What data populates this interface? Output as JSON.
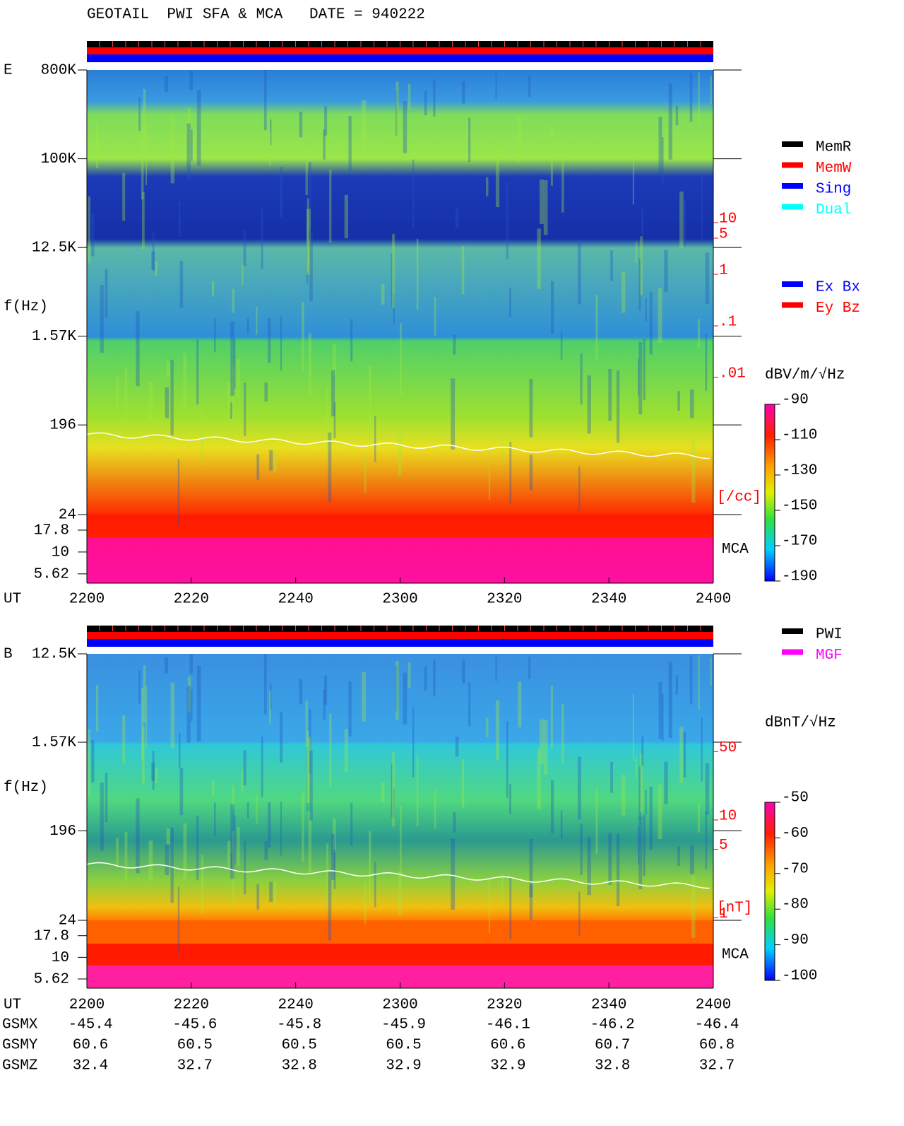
{
  "title": "GEOTAIL  PWI SFA & MCA   DATE = 940222",
  "chart_data": [
    {
      "type": "spectrogram",
      "panel_label": "E",
      "ylabel": "f(Hz)",
      "xlabel": "UT",
      "categories": [
        "2200",
        "2220",
        "2240",
        "2300",
        "2320",
        "2340",
        "2400"
      ],
      "yscale": "log",
      "ylim": [
        24,
        800000
      ],
      "yticks": [
        {
          "value": 800000,
          "label": "800K"
        },
        {
          "value": 100000,
          "label": "100K"
        },
        {
          "value": 12500,
          "label": "12.5K"
        },
        {
          "value": 1570,
          "label": "1.57K"
        },
        196,
        24
      ],
      "mca_label": "MCA",
      "mca_ylim": [
        4.4,
        26.8
      ],
      "mca_yticks": [
        17.8,
        10,
        5.62
      ],
      "density_unit": "[/cc]",
      "density_lim": [
        2.2e-05,
        9100
      ],
      "density_ticks": [
        10,
        5,
        1,
        {
          "value": 0.1,
          "label": ".1"
        },
        {
          "value": 0.01,
          "label": ".01"
        }
      ],
      "colorbar_label": "dBV/m/√Hz",
      "clim": [
        -190,
        -90
      ],
      "cticks": [
        -90,
        -110,
        -130,
        -150,
        -170,
        -190
      ],
      "status_legend": [
        {
          "name": "MemR",
          "color": "#000000"
        },
        {
          "name": "MemW",
          "color": "#ff0000"
        },
        {
          "name": "Sing",
          "color": "#0000ff"
        },
        {
          "name": "Dual",
          "color": "#00ffff"
        }
      ],
      "antenna_legend": [
        {
          "name": "Ex Bx",
          "color": "#0000ff"
        },
        {
          "name": "Ey Bz",
          "color": "#ff0000"
        }
      ]
    },
    {
      "type": "spectrogram",
      "panel_label": "B",
      "ylabel": "f(Hz)",
      "xlabel": "UT",
      "categories": [
        "2200",
        "2220",
        "2240",
        "2300",
        "2320",
        "2340",
        "2400"
      ],
      "yscale": "log",
      "ylim": [
        24,
        12500
      ],
      "yticks": [
        {
          "value": 12500,
          "label": "12.5K"
        },
        {
          "value": 1570,
          "label": "1.57K"
        },
        196,
        24
      ],
      "mca_label": "MCA",
      "mca_ylim": [
        4.4,
        26.8
      ],
      "mca_yticks": [
        17.8,
        10,
        5.62
      ],
      "density_unit": "[nT]",
      "density_lim": [
        0.94,
        500
      ],
      "density_ticks": [
        50,
        10,
        5,
        1
      ],
      "colorbar_label": "dBnT/√Hz",
      "clim": [
        -100,
        -50
      ],
      "cticks": [
        -50,
        -60,
        -70,
        -80,
        -90,
        -100
      ],
      "status_legend": [
        {
          "name": "PWI",
          "color": "#000000"
        },
        {
          "name": "MGF",
          "color": "#ff00ff"
        }
      ],
      "orbit": [
        {
          "name": "GSMX",
          "values": [
            -45.4,
            -45.6,
            -45.8,
            -45.9,
            -46.1,
            -46.2,
            -46.4
          ]
        },
        {
          "name": "GSMY",
          "values": [
            60.6,
            60.5,
            60.5,
            60.5,
            60.6,
            60.7,
            60.8
          ]
        },
        {
          "name": "GSMZ",
          "values": [
            32.4,
            32.7,
            32.8,
            32.9,
            32.9,
            32.8,
            32.7
          ]
        }
      ]
    }
  ]
}
